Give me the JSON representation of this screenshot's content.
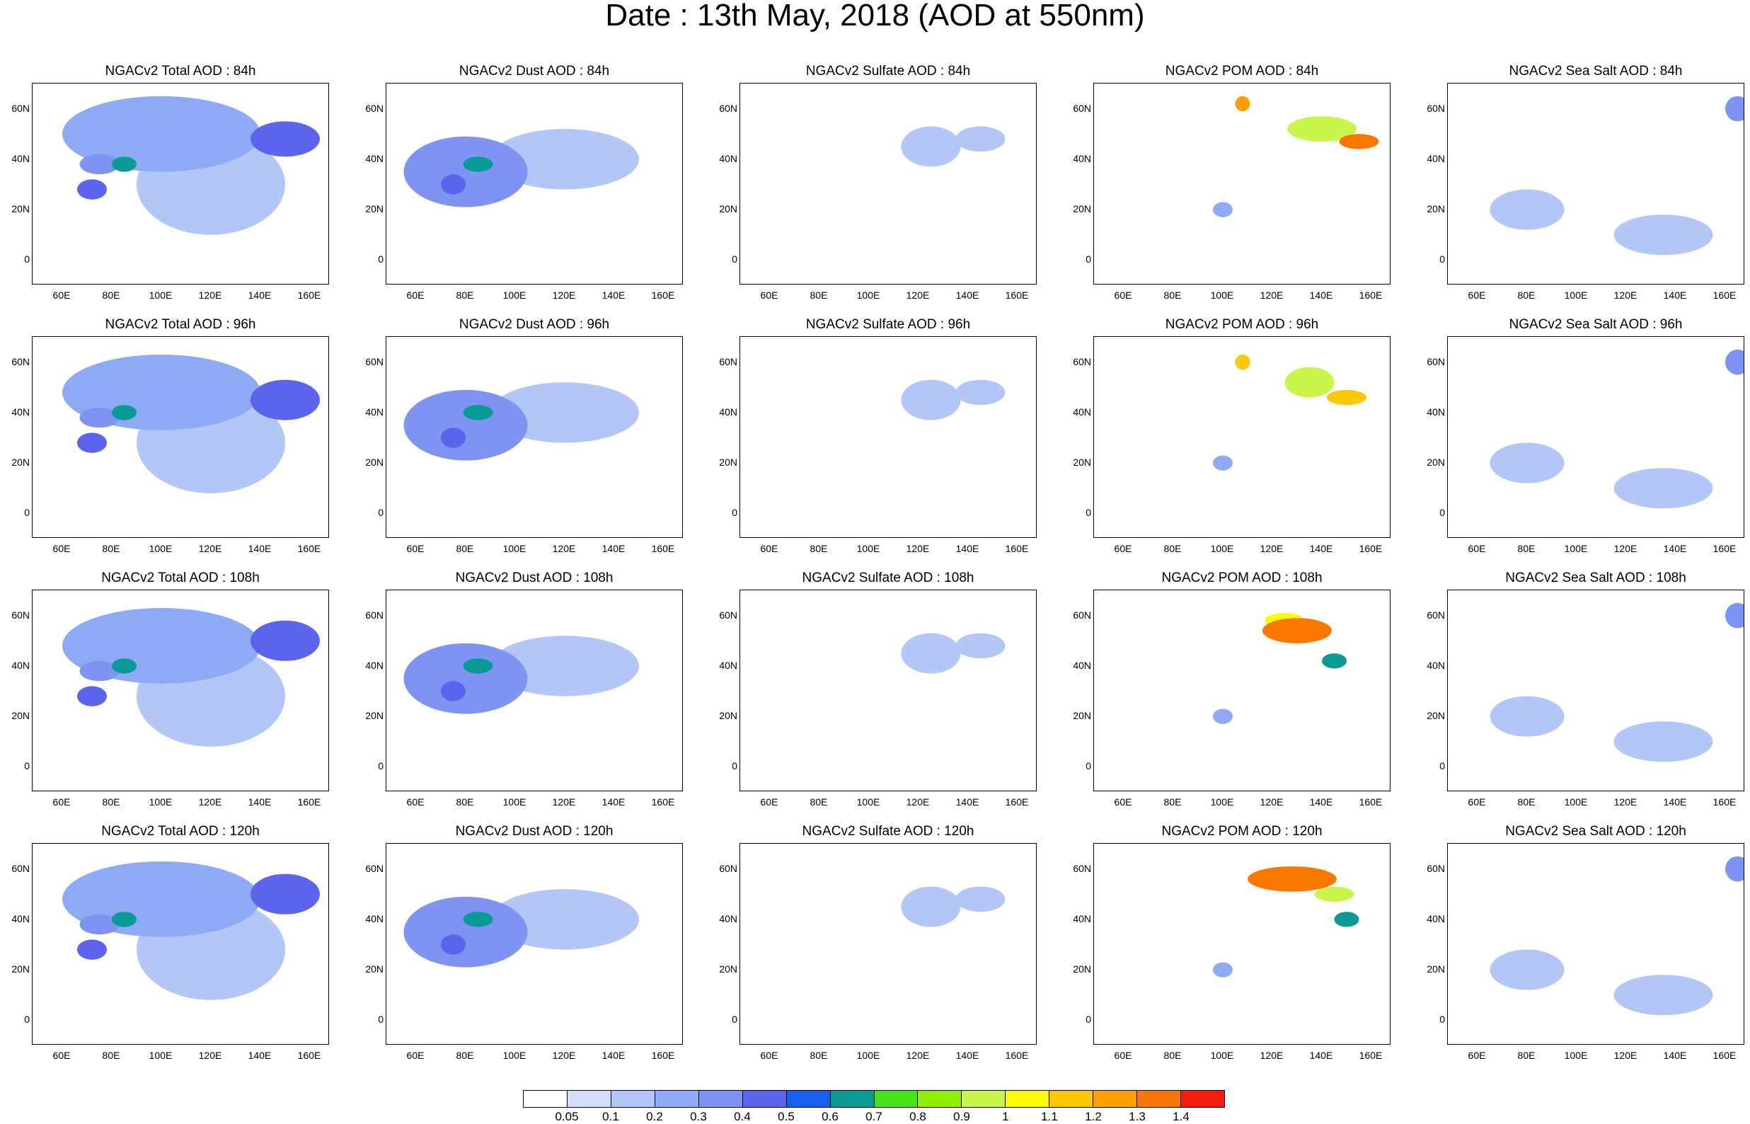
{
  "title": "Date : 13th May, 2018 (AOD at 550nm)",
  "chart_data": {
    "type": "heatmap",
    "variables": [
      {
        "key": "total",
        "titles": [
          "NGACv2 Total AOD : 84h",
          "NGACv2 Total AOD : 96h",
          "NGACv2 Total AOD : 108h",
          "NGACv2 Total AOD : 120h"
        ]
      },
      {
        "key": "dust",
        "titles": [
          "NGACv2 Dust AOD : 84h",
          "NGACv2 Dust AOD : 96h",
          "NGACv2 Dust AOD : 108h",
          "NGACv2 Dust AOD : 120h"
        ]
      },
      {
        "key": "sulfate",
        "titles": [
          "NGACv2 Sulfate AOD : 84h",
          "NGACv2 Sulfate AOD : 96h",
          "NGACv2 Sulfate AOD : 108h",
          "NGACv2 Sulfate AOD : 120h"
        ]
      },
      {
        "key": "pom",
        "titles": [
          "NGACv2 POM AOD : 84h",
          "NGACv2 POM AOD : 96h",
          "NGACv2 POM AOD : 108h",
          "NGACv2 POM AOD : 120h"
        ]
      },
      {
        "key": "seasalt",
        "titles": [
          "NGACv2 Sea Salt AOD : 84h",
          "NGACv2 Sea Salt AOD : 96h",
          "NGACv2 Sea Salt AOD : 108h",
          "NGACv2 Sea Salt  AOD : 120h"
        ]
      }
    ],
    "forecast_hours": [
      84,
      96,
      108,
      120
    ],
    "xlim": [
      48,
      168
    ],
    "ylim": [
      -10,
      70
    ],
    "x_ticks": [
      "60E",
      "80E",
      "100E",
      "120E",
      "140E",
      "160E"
    ],
    "x_tick_values": [
      60,
      80,
      100,
      120,
      140,
      160
    ],
    "y_ticks": [
      "60N",
      "40N",
      "20N",
      "0"
    ],
    "y_tick_values": [
      60,
      40,
      20,
      0
    ],
    "colorbar": {
      "labels": [
        "0.05",
        "0.1",
        "0.2",
        "0.3",
        "0.4",
        "0.5",
        "0.6",
        "0.7",
        "0.8",
        "0.9",
        "1",
        "1.1",
        "1.2",
        "1.3",
        "1.4"
      ],
      "colors": [
        "#ffffff",
        "#d2ddfa",
        "#b2c6f7",
        "#8eaaf5",
        "#7f93f2",
        "#5c64ee",
        "#155fee",
        "#099a96",
        "#48e21a",
        "#8ef000",
        "#c8f64a",
        "#fcfc00",
        "#fcc800",
        "#fca000",
        "#fa7800",
        "#f21c10"
      ]
    },
    "features": {
      "total": [
        [
          [
            75,
            38,
            8,
            4,
            0.35
          ],
          [
            72,
            28,
            6,
            4,
            0.4
          ],
          [
            85,
            38,
            5,
            3,
            0.6
          ],
          [
            150,
            48,
            14,
            7,
            0.45
          ],
          [
            100,
            50,
            40,
            15,
            0.2
          ],
          [
            120,
            30,
            30,
            20,
            0.15
          ]
        ],
        [
          [
            75,
            38,
            8,
            4,
            0.35
          ],
          [
            72,
            28,
            6,
            4,
            0.4
          ],
          [
            85,
            40,
            5,
            3,
            0.6
          ],
          [
            150,
            45,
            14,
            8,
            0.45
          ],
          [
            100,
            48,
            40,
            15,
            0.2
          ],
          [
            120,
            28,
            30,
            20,
            0.15
          ]
        ],
        [
          [
            75,
            38,
            8,
            4,
            0.35
          ],
          [
            72,
            28,
            6,
            4,
            0.4
          ],
          [
            85,
            40,
            5,
            3,
            0.6
          ],
          [
            150,
            50,
            14,
            8,
            0.45
          ],
          [
            100,
            48,
            40,
            15,
            0.2
          ],
          [
            120,
            28,
            30,
            20,
            0.15
          ]
        ],
        [
          [
            75,
            38,
            8,
            4,
            0.35
          ],
          [
            72,
            28,
            6,
            4,
            0.4
          ],
          [
            85,
            40,
            5,
            3,
            0.6
          ],
          [
            150,
            50,
            14,
            8,
            0.45
          ],
          [
            100,
            48,
            40,
            15,
            0.2
          ],
          [
            120,
            28,
            30,
            20,
            0.15
          ]
        ]
      ],
      "dust": [
        [
          [
            80,
            35,
            25,
            14,
            0.3
          ],
          [
            85,
            38,
            6,
            3,
            0.6
          ],
          [
            75,
            30,
            5,
            4,
            0.45
          ],
          [
            120,
            40,
            30,
            12,
            0.12
          ]
        ],
        [
          [
            80,
            35,
            25,
            14,
            0.3
          ],
          [
            85,
            40,
            6,
            3,
            0.6
          ],
          [
            75,
            30,
            5,
            4,
            0.45
          ],
          [
            120,
            40,
            30,
            12,
            0.12
          ]
        ],
        [
          [
            80,
            35,
            25,
            14,
            0.3
          ],
          [
            85,
            40,
            6,
            3,
            0.6
          ],
          [
            75,
            30,
            5,
            4,
            0.45
          ],
          [
            120,
            40,
            30,
            12,
            0.12
          ]
        ],
        [
          [
            80,
            35,
            25,
            14,
            0.3
          ],
          [
            85,
            40,
            6,
            3,
            0.6
          ],
          [
            75,
            30,
            5,
            4,
            0.45
          ],
          [
            120,
            40,
            30,
            12,
            0.12
          ]
        ]
      ],
      "sulfate": [
        [
          [
            125,
            45,
            12,
            8,
            0.18
          ],
          [
            145,
            48,
            10,
            5,
            0.14
          ]
        ],
        [
          [
            125,
            45,
            12,
            8,
            0.18
          ],
          [
            145,
            48,
            10,
            5,
            0.14
          ]
        ],
        [
          [
            125,
            45,
            12,
            8,
            0.18
          ],
          [
            145,
            48,
            10,
            5,
            0.14
          ]
        ],
        [
          [
            125,
            45,
            12,
            8,
            0.18
          ],
          [
            145,
            48,
            10,
            5,
            0.14
          ]
        ]
      ],
      "pom": [
        [
          [
            108,
            62,
            3,
            3,
            1.2
          ],
          [
            140,
            52,
            14,
            5,
            0.9
          ],
          [
            155,
            47,
            8,
            3,
            1.3
          ],
          [
            100,
            20,
            4,
            3,
            0.2
          ]
        ],
        [
          [
            108,
            60,
            3,
            3,
            1.1
          ],
          [
            135,
            52,
            10,
            6,
            0.9
          ],
          [
            150,
            46,
            8,
            3,
            1.1
          ],
          [
            100,
            20,
            4,
            3,
            0.2
          ]
        ],
        [
          [
            130,
            54,
            14,
            5,
            1.3
          ],
          [
            125,
            58,
            8,
            3,
            1.0
          ],
          [
            145,
            42,
            5,
            3,
            0.6
          ],
          [
            100,
            20,
            4,
            3,
            0.2
          ]
        ],
        [
          [
            128,
            56,
            18,
            5,
            1.3
          ],
          [
            145,
            50,
            8,
            3,
            0.9
          ],
          [
            150,
            40,
            5,
            3,
            0.6
          ],
          [
            100,
            20,
            4,
            3,
            0.2
          ]
        ]
      ],
      "seasalt": [
        [
          [
            80,
            20,
            15,
            8,
            0.12
          ],
          [
            135,
            10,
            20,
            8,
            0.12
          ],
          [
            165,
            60,
            5,
            5,
            0.3
          ]
        ],
        [
          [
            80,
            20,
            15,
            8,
            0.12
          ],
          [
            135,
            10,
            20,
            8,
            0.12
          ],
          [
            165,
            60,
            5,
            5,
            0.3
          ]
        ],
        [
          [
            80,
            20,
            15,
            8,
            0.12
          ],
          [
            135,
            10,
            20,
            8,
            0.12
          ],
          [
            165,
            60,
            5,
            5,
            0.3
          ]
        ],
        [
          [
            80,
            20,
            15,
            8,
            0.12
          ],
          [
            135,
            10,
            20,
            8,
            0.12
          ],
          [
            165,
            60,
            5,
            5,
            0.3
          ]
        ]
      ]
    }
  }
}
